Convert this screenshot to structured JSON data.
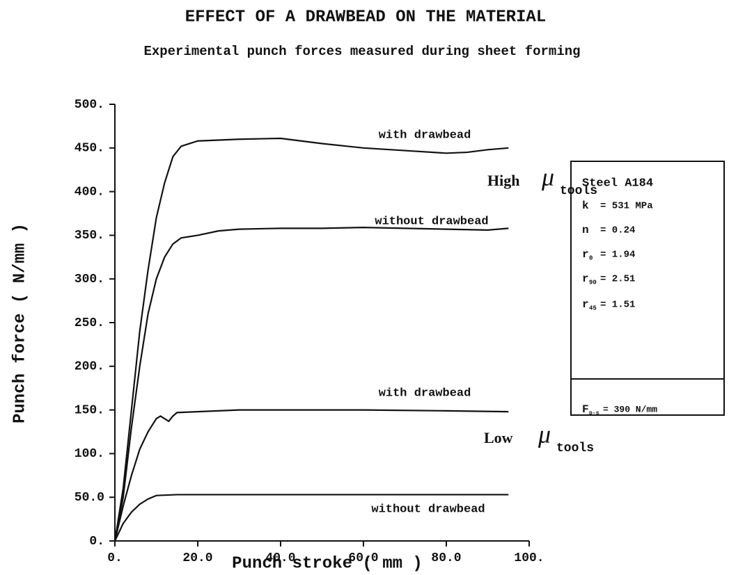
{
  "chart_data": {
    "type": "line",
    "title": "EFFECT OF A DRAWBEAD ON THE MATERIAL",
    "subtitle": "Experimental punch forces measured during sheet forming",
    "xlabel": "Punch stroke ( mm )",
    "ylabel": "Punch force ( N/mm )",
    "xlim": [
      0,
      100
    ],
    "ylim": [
      0,
      500
    ],
    "xticks": [
      {
        "value": 0,
        "label": "0."
      },
      {
        "value": 20,
        "label": "20.0"
      },
      {
        "value": 40,
        "label": "40.0"
      },
      {
        "value": 60,
        "label": "60.0"
      },
      {
        "value": 80,
        "label": "80.0"
      },
      {
        "value": 100,
        "label": "100."
      }
    ],
    "yticks": [
      {
        "value": 0,
        "label": "0."
      },
      {
        "value": 50,
        "label": "50.0"
      },
      {
        "value": 100,
        "label": "100."
      },
      {
        "value": 150,
        "label": "150."
      },
      {
        "value": 200,
        "label": "200."
      },
      {
        "value": 250,
        "label": "250."
      },
      {
        "value": 300,
        "label": "300."
      },
      {
        "value": 350,
        "label": "350."
      },
      {
        "value": 400,
        "label": "400."
      },
      {
        "value": 450,
        "label": "450."
      },
      {
        "value": 500,
        "label": "500."
      }
    ],
    "series": [
      {
        "name": "with drawbead",
        "color": "#111111",
        "x": [
          0,
          2,
          4,
          6,
          8,
          10,
          12,
          14,
          16,
          20,
          30,
          40,
          50,
          60,
          70,
          80,
          85,
          90,
          95
        ],
        "values": [
          0,
          60,
          150,
          240,
          310,
          370,
          410,
          440,
          452,
          458,
          460,
          461,
          455,
          450,
          447,
          444,
          445,
          448,
          450
        ]
      },
      {
        "name": "without drawbead",
        "color": "#111111",
        "x": [
          0,
          2,
          4,
          6,
          8,
          10,
          12,
          14,
          16,
          20,
          25,
          30,
          40,
          50,
          60,
          70,
          80,
          90,
          95
        ],
        "values": [
          0,
          50,
          130,
          200,
          260,
          300,
          325,
          340,
          347,
          350,
          355,
          357,
          358,
          358,
          359,
          358,
          357,
          356,
          358
        ]
      },
      {
        "name": "with drawbead",
        "color": "#111111",
        "x": [
          0,
          2,
          4,
          6,
          8,
          10,
          11,
          12,
          13,
          14,
          15,
          20,
          30,
          40,
          60,
          80,
          95
        ],
        "values": [
          0,
          40,
          75,
          105,
          125,
          140,
          143,
          140,
          137,
          143,
          147,
          148,
          150,
          150,
          150,
          149,
          148
        ]
      },
      {
        "name": "without drawbead",
        "color": "#111111",
        "x": [
          0,
          2,
          4,
          6,
          8,
          10,
          15,
          30,
          60,
          95
        ],
        "values": [
          0,
          20,
          33,
          42,
          48,
          52,
          53,
          53,
          53,
          53
        ]
      }
    ],
    "annotations": [
      {
        "text": "High",
        "symbol": "μ",
        "subscript": "tools"
      },
      {
        "text": "Low",
        "symbol": "μ",
        "subscript": "tools"
      }
    ],
    "box": {
      "title": "Steel A184",
      "lines": [
        {
          "symbol": "k",
          "subscript": "",
          "text": "= 531 MPa"
        },
        {
          "symbol": "n",
          "subscript": "",
          "text": "= 0.24"
        },
        {
          "symbol": "r",
          "subscript": "0",
          "text": "= 1.94"
        },
        {
          "symbol": "r",
          "subscript": "90",
          "text": "= 2.51"
        },
        {
          "symbol": "r",
          "subscript": "45",
          "text": "= 1.51"
        }
      ],
      "footer": {
        "symbol": "F",
        "subscript": "p-s",
        "text": "= 390 N/mm"
      }
    }
  }
}
